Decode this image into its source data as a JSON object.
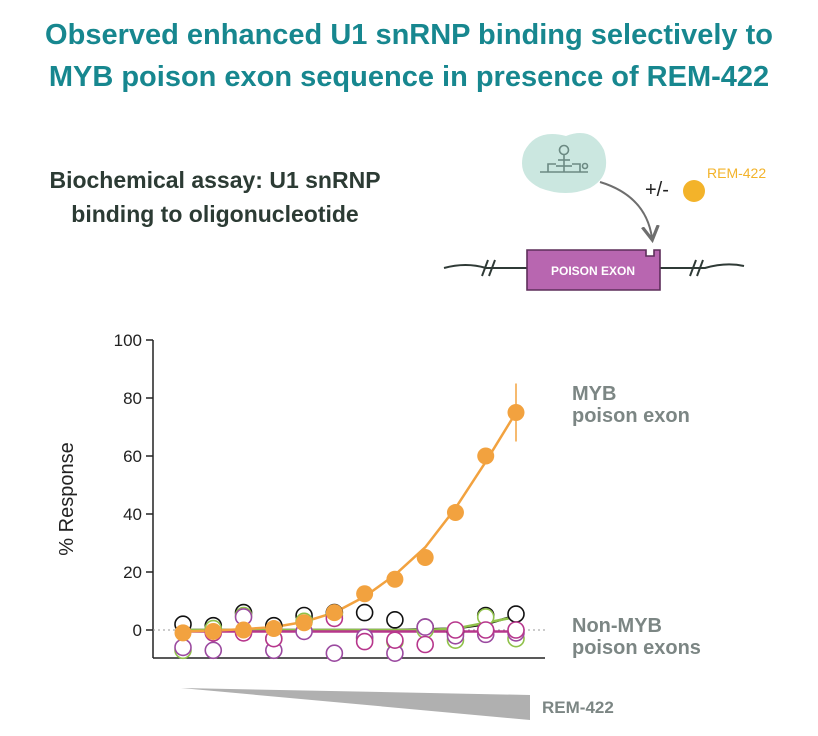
{
  "title": {
    "line1": "Observed enhanced U1 snRNP binding selectively to",
    "line2": "MYB poison exon sequence in presence of REM-422"
  },
  "subtitle": {
    "line1": "Biochemical assay: U1 snRNP",
    "line2": "binding to oligonucleotide"
  },
  "schematic": {
    "plus_minus": "+/-",
    "compound": "REM-422",
    "exon_label": "POISON EXON"
  },
  "colors": {
    "title": "#17878f",
    "myb": "#f2a23f",
    "compound_dot": "#f3b32a",
    "exon_box": "#b866b0",
    "u1_particle": "#cbe7e0",
    "non_myb_label": "#7c8684",
    "wedge": "#b0b0b0",
    "series_black": "#111111",
    "series_green": "#8fc14a",
    "series_purple": "#9b4aa0",
    "series_magenta": "#b7368c",
    "series_teal": "#2fa2b8"
  },
  "chart_data": {
    "type": "scatter",
    "title": "",
    "xlabel": "REM-422",
    "ylabel": "% Response",
    "ylim": [
      -10,
      100
    ],
    "yticks": [
      0,
      20,
      40,
      60,
      80,
      100
    ],
    "x": [
      1,
      2,
      3,
      4,
      5,
      6,
      7,
      8,
      9,
      10,
      11,
      12
    ],
    "x_description": "increasing REM-422 concentration (wedge)",
    "grid": false,
    "zero_line": "dotted",
    "series": [
      {
        "name": "MYB poison exon",
        "values": [
          -1,
          -0.5,
          0,
          0.5,
          2.5,
          6,
          12.5,
          17.5,
          25,
          40.5,
          60,
          75
        ],
        "error": [
          0,
          0,
          0,
          0,
          0,
          0,
          0,
          0,
          0,
          0,
          0,
          10
        ],
        "fit": [
          -0.5,
          -0.2,
          0.3,
          1,
          2.8,
          6,
          11.5,
          19,
          28.5,
          42,
          58,
          75
        ],
        "style": "filled",
        "color": "#f2a23f"
      },
      {
        "name": "Non-MYB poison exons",
        "points": [
          {
            "x": 1,
            "values": [
              2,
              -7,
              -6
            ]
          },
          {
            "x": 2,
            "values": [
              1.5,
              0.5,
              -7,
              -1
            ]
          },
          {
            "x": 3,
            "values": [
              6,
              5,
              4.5,
              -1
            ]
          },
          {
            "x": 4,
            "values": [
              1.5,
              -3,
              -7,
              -3
            ]
          },
          {
            "x": 5,
            "values": [
              5,
              3,
              -0.5
            ]
          },
          {
            "x": 6,
            "values": [
              6,
              5,
              -8,
              4
            ]
          },
          {
            "x": 7,
            "values": [
              6,
              -3,
              -2.5,
              -4
            ]
          },
          {
            "x": 8,
            "values": [
              3.5,
              -4,
              -8,
              -3.5
            ]
          },
          {
            "x": 9,
            "values": [
              1,
              0,
              1,
              -5
            ]
          },
          {
            "x": 10,
            "values": [
              -1,
              -3.5,
              -2,
              0
            ]
          },
          {
            "x": 11,
            "values": [
              5,
              4.5,
              -1.5,
              0
            ]
          },
          {
            "x": 12,
            "values": [
              5.5,
              -3,
              -1,
              0
            ]
          }
        ],
        "fit_lines": [
          {
            "color": "#111111",
            "values": [
              0,
              0,
              0,
              0,
              0,
              0,
              0,
              0,
              0.2,
              0.5,
              2,
              5
            ]
          },
          {
            "color": "#8fc14a",
            "values": [
              0,
              0,
              0,
              0,
              0,
              0,
              0,
              0,
              0,
              0.5,
              2.5,
              4.5
            ]
          },
          {
            "color": "#b7368c",
            "values": [
              -0.5,
              -0.5,
              -0.5,
              -0.5,
              -0.5,
              -0.5,
              -0.5,
              -0.5,
              -0.5,
              -0.5,
              -0.5,
              -0.5
            ]
          }
        ],
        "colors": [
          "#111111",
          "#8fc14a",
          "#9b4aa0",
          "#b7368c",
          "#2fa2b8"
        ],
        "style": "open"
      }
    ],
    "annotations": [
      {
        "text_line1": "MYB",
        "text_line2": "poison exon",
        "color": "#7c8684"
      },
      {
        "text_line1": "Non-MYB",
        "text_line2": "poison exons",
        "color": "#7c8684"
      }
    ]
  }
}
